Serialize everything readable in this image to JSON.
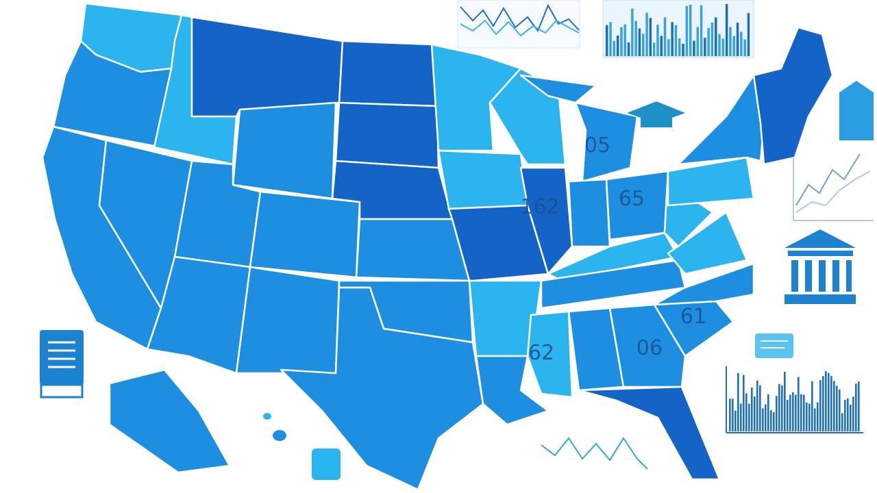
{
  "map": {
    "state_labels": [
      "05",
      "65",
      "162",
      "61",
      "06",
      "62"
    ]
  }
}
